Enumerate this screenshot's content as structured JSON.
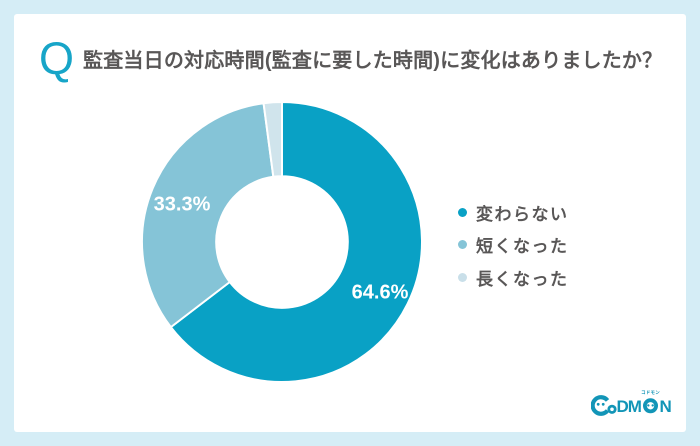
{
  "question": {
    "q_mark": "Q",
    "title": "監査当日の対応時間(監査に要した時間)に変化はありましたか？"
  },
  "chart_data": {
    "type": "pie",
    "variant": "donut",
    "title": "監査当日の対応時間(監査に要した時間)に変化はありましたか？",
    "categories": [
      "変わらない",
      "短くなった",
      "長くなった"
    ],
    "values": [
      64.6,
      33.3,
      2.1
    ],
    "unit": "%",
    "slice_labels": [
      "64.6%",
      "33.3%",
      ""
    ],
    "colors": [
      "#09a1c5",
      "#85c4d7",
      "#d0e4ec"
    ],
    "start_angle_deg": -90,
    "direction": "clockwise",
    "inner_radius_ratio": 0.47,
    "gap_stroke": "#ffffff",
    "legend_position": "right"
  },
  "legend": {
    "items": [
      {
        "label": "変わらない",
        "color": "#09a1c5"
      },
      {
        "label": "短くなった",
        "color": "#85c4d7"
      },
      {
        "label": "長くなった",
        "color": "#c9dfe9"
      }
    ]
  },
  "logo": {
    "text": "CoDMON",
    "kana": "コドモン",
    "letters_dm": "DM",
    "letter_n": "N"
  },
  "colors": {
    "page_background": "#d5edf6",
    "card_background": "#ffffff",
    "accent_teal": "#17a5c8",
    "logo_teal": "#1295b7",
    "text_gray": "#595757",
    "slice_label_white": "#ffffff"
  }
}
